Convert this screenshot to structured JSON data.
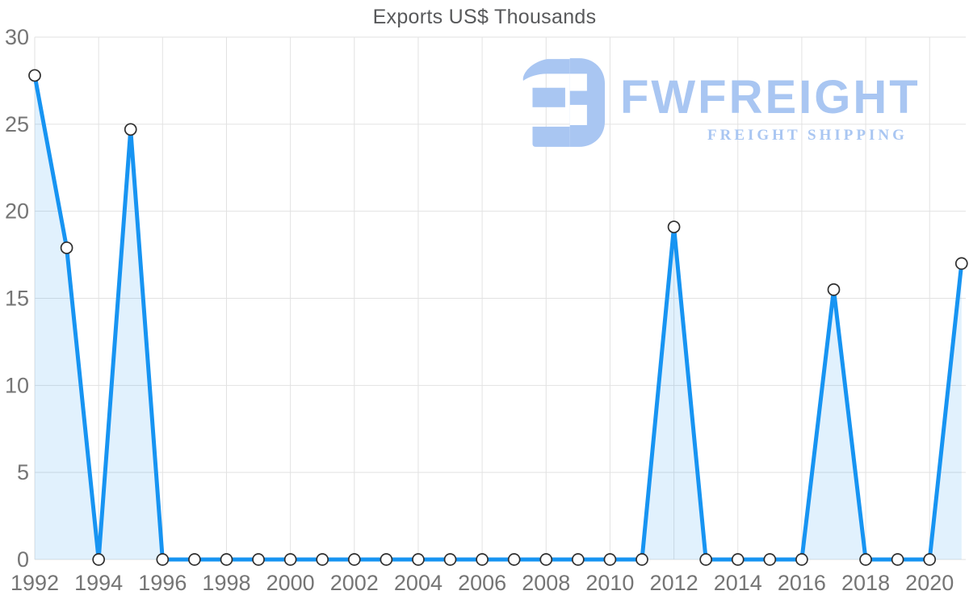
{
  "title": "Exports US$ Thousands",
  "watermark": {
    "brand": "FWFREIGHT",
    "tagline": "FREIGHT SHIPPING",
    "color": "#a9c6f2"
  },
  "chart_data": {
    "type": "area",
    "title": "Exports US$ Thousands",
    "xlabel": "",
    "ylabel": "",
    "x": [
      1992,
      1993,
      1994,
      1995,
      1996,
      1997,
      1998,
      1999,
      2000,
      2001,
      2002,
      2003,
      2004,
      2005,
      2006,
      2007,
      2008,
      2009,
      2010,
      2011,
      2012,
      2013,
      2014,
      2015,
      2016,
      2017,
      2018,
      2019,
      2020,
      2021
    ],
    "series": [
      {
        "name": "Exports US$ Thousands",
        "values": [
          27.8,
          17.9,
          0,
          24.7,
          0,
          0,
          0,
          0,
          0,
          0,
          0,
          0,
          0,
          0,
          0,
          0,
          0,
          0,
          0,
          0,
          19.1,
          0,
          0,
          0,
          0,
          15.5,
          0,
          0,
          0,
          17.0
        ]
      }
    ],
    "xlim": [
      1992,
      2021
    ],
    "ylim": [
      0,
      30
    ],
    "yticks": [
      0,
      5,
      10,
      15,
      20,
      25,
      30
    ],
    "xticks": [
      1992,
      1994,
      1996,
      1998,
      2000,
      2002,
      2004,
      2006,
      2008,
      2010,
      2012,
      2014,
      2016,
      2018,
      2020
    ],
    "grid": true,
    "legend": "none",
    "marker": "circle",
    "colors": {
      "line": "#1794f2",
      "area": "rgba(23, 148, 242, 0.13)",
      "marker_fill": "#ffffff",
      "marker_stroke": "#2f2f2f",
      "grid": "#e2e2e2",
      "tick_label": "#757575",
      "title": "#58595b"
    }
  }
}
